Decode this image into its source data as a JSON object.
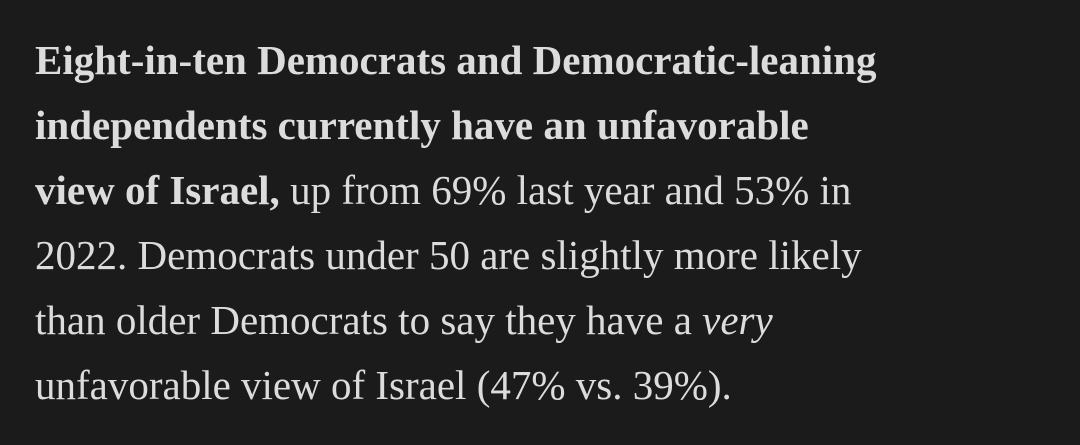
{
  "paragraph": {
    "lines": [
      {
        "runs": [
          {
            "text": "Eight-in-ten Democrats and Democratic-leaning",
            "style": "bold"
          }
        ]
      },
      {
        "runs": [
          {
            "text": "independents currently have an unfavorable",
            "style": "bold"
          }
        ]
      },
      {
        "runs": [
          {
            "text": "view of Israel,",
            "style": "bold"
          },
          {
            "text": " up from 69% last year and 53% in",
            "style": "normal"
          }
        ]
      },
      {
        "runs": [
          {
            "text": "2022. Democrats under 50 are slightly more likely",
            "style": "normal"
          }
        ]
      },
      {
        "runs": [
          {
            "text": "than older Democrats to say they have a ",
            "style": "normal"
          },
          {
            "text": "very",
            "style": "italic"
          }
        ]
      },
      {
        "runs": [
          {
            "text": "unfavorable view of Israel (47% vs. 39%).",
            "style": "normal"
          }
        ]
      }
    ]
  }
}
